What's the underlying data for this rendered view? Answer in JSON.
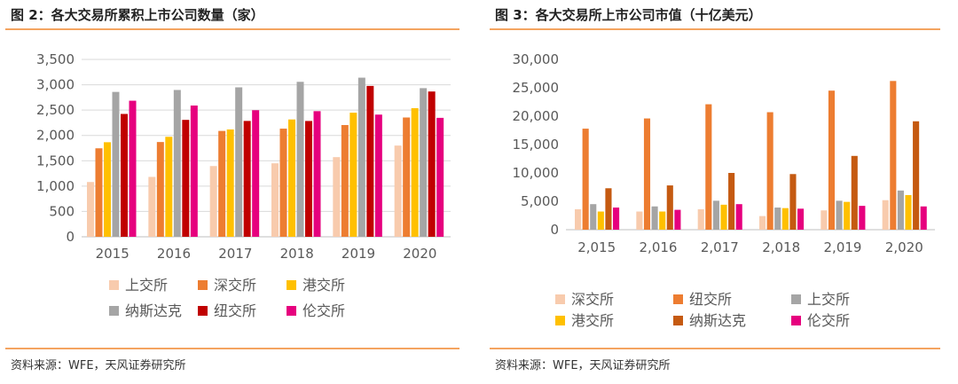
{
  "panels": [
    {
      "title": "图 2：各大交易所累积上市公司数量（家）",
      "source": "资料来源：WFE，天风证券研究所"
    },
    {
      "title": "图 3：各大交易所上市公司市值（十亿美元）",
      "source": "资料来源：WFE，天风证券研究所"
    }
  ],
  "chart_data": [
    {
      "type": "bar",
      "title": "图 2：各大交易所累积上市公司数量（家）",
      "categories": [
        "2015",
        "2016",
        "2017",
        "2018",
        "2019",
        "2020"
      ],
      "ylim": [
        0,
        3500
      ],
      "yticks": [
        "0",
        "500",
        "1,000",
        "1,500",
        "2,000",
        "2,500",
        "3,000",
        "3,500"
      ],
      "grid": true,
      "legend_position": "bottom",
      "series": [
        {
          "name": "上交所",
          "color": "#F8CBAD",
          "values": [
            1081,
            1182,
            1396,
            1450,
            1572,
            1800
          ]
        },
        {
          "name": "深交所",
          "color": "#ED7D31",
          "values": [
            1746,
            1870,
            2089,
            2134,
            2205,
            2354
          ]
        },
        {
          "name": "港交所",
          "color": "#FFC000",
          "values": [
            1866,
            1973,
            2118,
            2315,
            2449,
            2538
          ]
        },
        {
          "name": "纳斯达克",
          "color": "#A5A5A5",
          "values": [
            2859,
            2897,
            2949,
            3058,
            3140,
            2933
          ]
        },
        {
          "name": "纽交所",
          "color": "#C00000",
          "values": [
            2424,
            2307,
            2286,
            2285,
            2977,
            2867
          ]
        },
        {
          "name": "伦交所",
          "color": "#E6007E",
          "values": [
            2685,
            2590,
            2498,
            2479,
            2411,
            2347
          ]
        }
      ]
    },
    {
      "type": "bar",
      "title": "图 3：各大交易所上市公司市值（十亿美元）",
      "categories": [
        "2,015",
        "2,016",
        "2,017",
        "2,018",
        "2,019",
        "2,020"
      ],
      "ylim": [
        0,
        30000
      ],
      "yticks": [
        "0",
        "5,000",
        "10,000",
        "15,000",
        "20,000",
        "25,000",
        "30,000"
      ],
      "grid": false,
      "legend_position": "bottom",
      "series": [
        {
          "name": "深交所",
          "color": "#F8CBAD",
          "values": [
            3600,
            3200,
            3600,
            2400,
            3400,
            5200
          ]
        },
        {
          "name": "纽交所",
          "color": "#ED7D31",
          "values": [
            17800,
            19600,
            22100,
            20700,
            24500,
            26200
          ]
        },
        {
          "name": "上交所",
          "color": "#A5A5A5",
          "values": [
            4500,
            4100,
            5100,
            3900,
            5100,
            6900
          ]
        },
        {
          "name": "港交所",
          "color": "#FFC000",
          "values": [
            3200,
            3200,
            4400,
            3800,
            4900,
            6100
          ]
        },
        {
          "name": "纳斯达克",
          "color": "#C55A11",
          "values": [
            7300,
            7800,
            10000,
            9800,
            13000,
            19100
          ]
        },
        {
          "name": "伦交所",
          "color": "#E6007E",
          "values": [
            3900,
            3500,
            4500,
            3700,
            4200,
            4100
          ]
        }
      ]
    }
  ]
}
